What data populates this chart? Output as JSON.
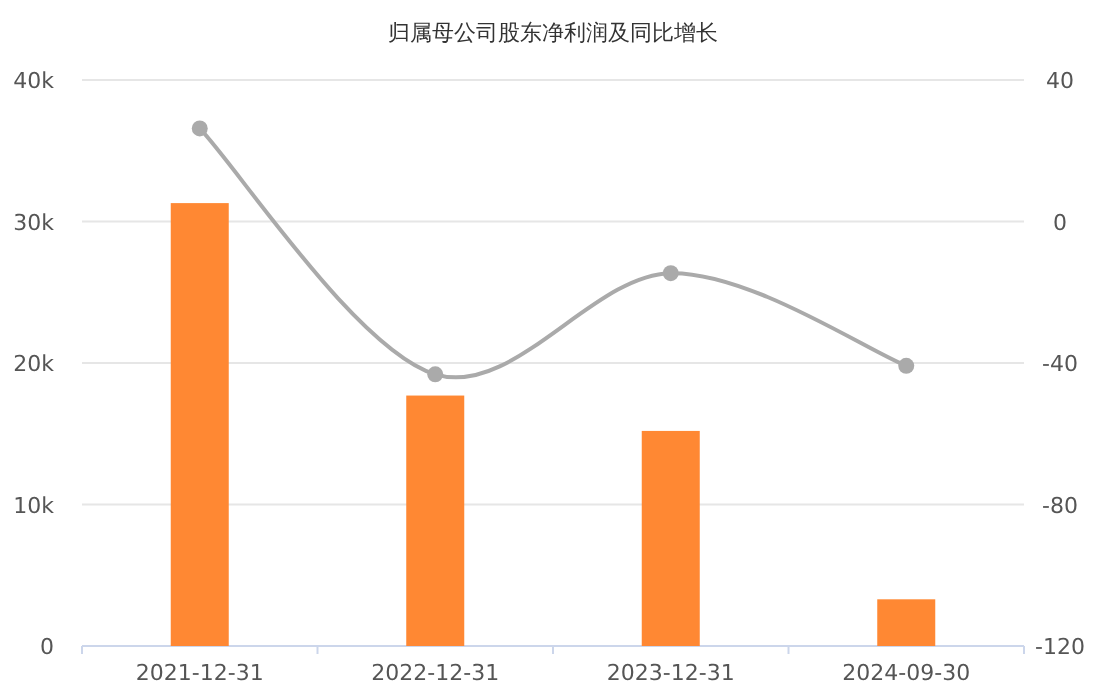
{
  "chart_data": {
    "type": "bar",
    "title": "归属母公司股东净利润及同比增长",
    "categories": [
      "2021-12-31",
      "2022-12-31",
      "2023-12-31",
      "2024-09-30"
    ],
    "series": [
      {
        "color": "#ff8833",
        "values": [
          31300,
          17700,
          15200,
          3300
        ]
      },
      {
        "type": "line",
        "axis": "y2",
        "color": "#aaaaaa",
        "marker": "circle",
        "values": [
          26.3,
          -43.2,
          -14.6,
          -40.8
        ]
      }
    ],
    "ylim": [
      0,
      40000
    ],
    "yticks": [
      0,
      {
        "value": 10000,
        "label": "10k"
      },
      {
        "value": 20000,
        "label": "20k"
      },
      {
        "value": 30000,
        "label": "30k"
      },
      {
        "value": 40000,
        "label": "40k"
      }
    ],
    "y2lim": [
      -120,
      40
    ],
    "y2ticks": [
      -120,
      -80,
      -40,
      0,
      40
    ],
    "grid": "y"
  }
}
